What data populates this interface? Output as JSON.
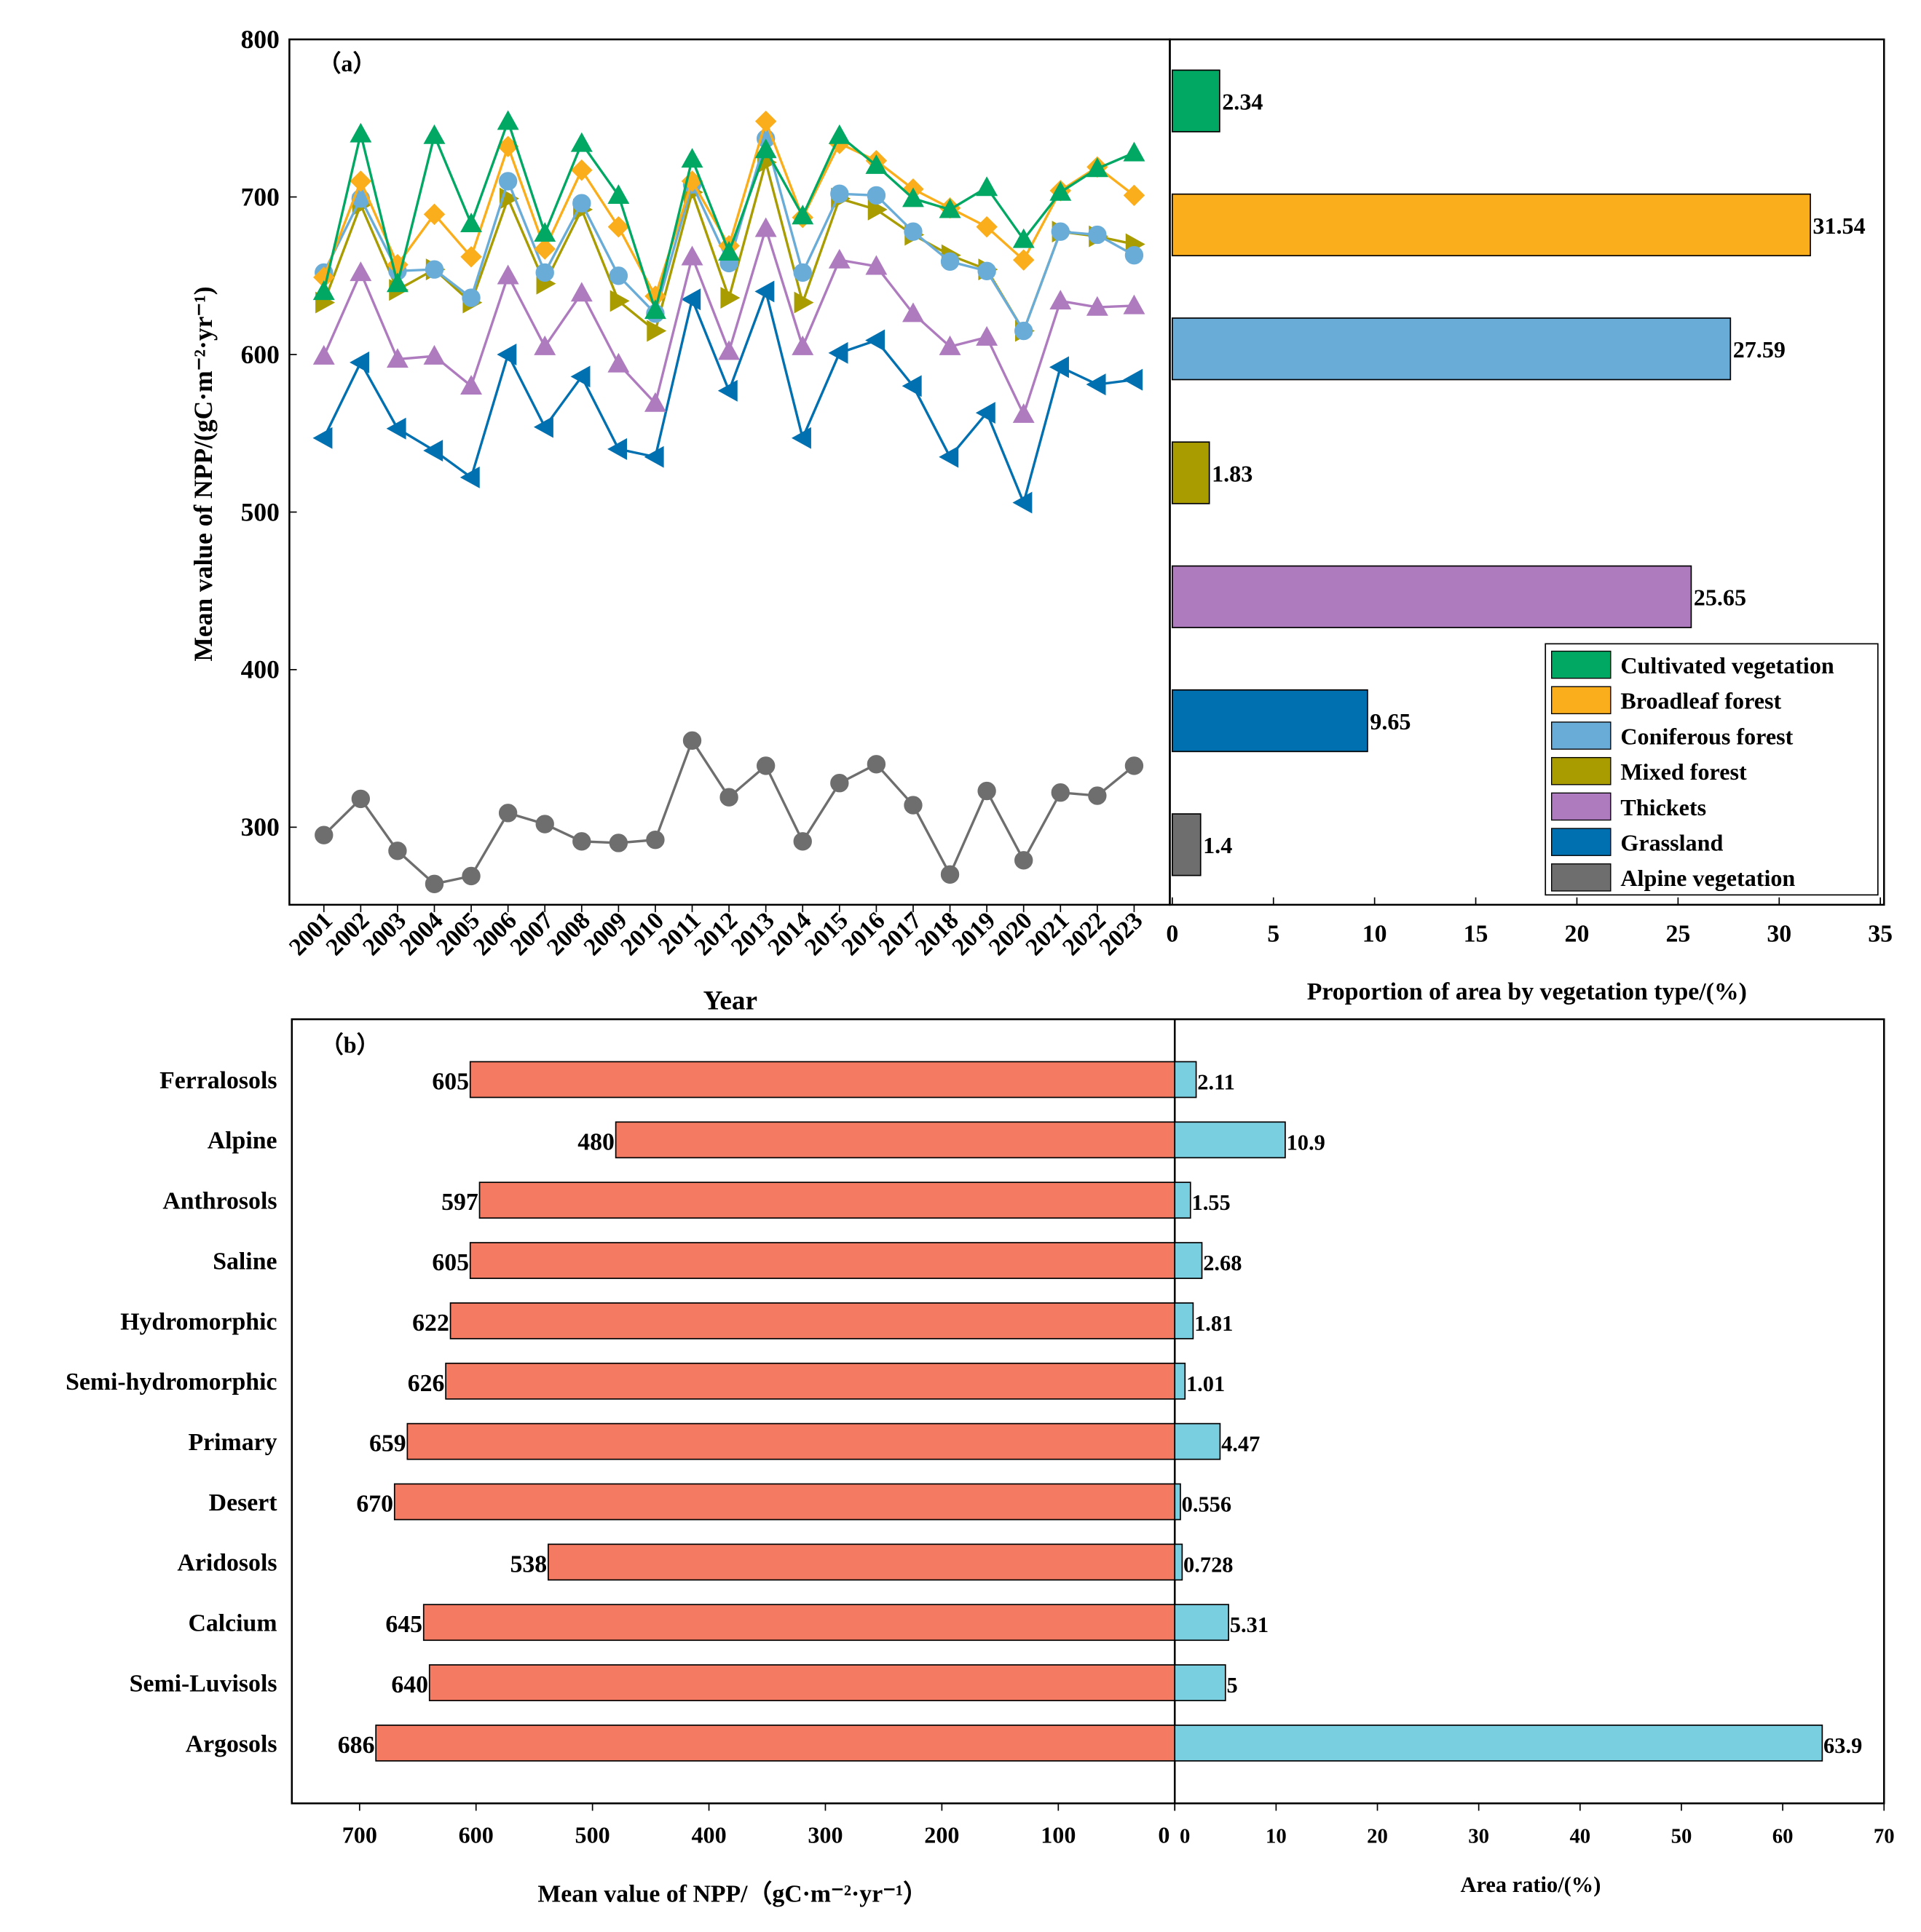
{
  "chart_data": [
    {
      "type": "line",
      "panel_label": "（a）",
      "xlabel": "Year",
      "ylabel": "Mean value of NPP/(gC·m⁻²·yr⁻¹)",
      "ylim": [
        250,
        800
      ],
      "yticks": [
        300,
        400,
        500,
        600,
        700,
        800
      ],
      "x": [
        2001,
        2002,
        2003,
        2004,
        2005,
        2006,
        2007,
        2008,
        2009,
        2010,
        2011,
        2012,
        2013,
        2014,
        2015,
        2016,
        2017,
        2018,
        2019,
        2020,
        2021,
        2022,
        2023
      ],
      "series": [
        {
          "name": "Cultivated vegetation",
          "color": "#00a864",
          "marker": "triangle-up",
          "values": [
            640,
            740,
            645,
            739,
            683,
            748,
            677,
            734,
            701,
            628,
            724,
            665,
            730,
            688,
            739,
            720,
            699,
            692,
            706,
            673,
            703,
            718,
            728
          ]
        },
        {
          "name": "Broadleaf forest",
          "color": "#fbae1c",
          "marker": "diamond",
          "values": [
            649,
            710,
            657,
            689,
            662,
            732,
            667,
            717,
            681,
            637,
            710,
            669,
            748,
            687,
            734,
            723,
            705,
            693,
            681,
            660,
            704,
            719,
            701
          ]
        },
        {
          "name": "Coniferous forest",
          "color": "#6aacd8",
          "marker": "circle",
          "values": [
            652,
            699,
            653,
            654,
            636,
            710,
            652,
            696,
            650,
            626,
            708,
            658,
            737,
            652,
            702,
            701,
            678,
            659,
            653,
            615,
            678,
            676,
            663
          ]
        },
        {
          "name": "Mixed forest",
          "color": "#a89c00",
          "marker": "triangle-right",
          "values": [
            633,
            695,
            641,
            654,
            633,
            699,
            645,
            692,
            634,
            615,
            703,
            636,
            722,
            633,
            699,
            692,
            676,
            663,
            654,
            615,
            678,
            675,
            670
          ]
        },
        {
          "name": "Thickets",
          "color": "#ae7bbf",
          "marker": "triangle-up",
          "values": [
            599,
            652,
            597,
            599,
            580,
            650,
            605,
            639,
            594,
            569,
            662,
            602,
            680,
            605,
            660,
            656,
            626,
            605,
            611,
            562,
            634,
            630,
            631
          ]
        },
        {
          "name": "Grassland",
          "color": "#0070b0",
          "marker": "triangle-left",
          "values": [
            547,
            595,
            553,
            539,
            522,
            600,
            554,
            586,
            540,
            535,
            635,
            577,
            640,
            547,
            601,
            609,
            580,
            535,
            563,
            506,
            592,
            581,
            584
          ]
        },
        {
          "name": "Alpine vegetation",
          "color": "#6e6e6e",
          "marker": "circle",
          "values": [
            295,
            318,
            285,
            264,
            269,
            309,
            302,
            291,
            290,
            292,
            355,
            319,
            339,
            291,
            328,
            340,
            314,
            270,
            323,
            279,
            322,
            320,
            339
          ]
        }
      ]
    },
    {
      "type": "bar",
      "orientation": "horizontal",
      "xlabel": "Proportion of area by vegetation type/(%)",
      "xlim": [
        0,
        35
      ],
      "xticks": [
        0,
        5,
        10,
        15,
        20,
        25,
        30,
        35
      ],
      "categories": [
        "Cultivated vegetation",
        "Broadleaf forest",
        "Coniferous forest",
        "Mixed forest",
        "Thickets",
        "Grassland",
        "Alpine vegetation"
      ],
      "values": [
        2.34,
        31.54,
        27.59,
        1.83,
        25.65,
        9.65,
        1.4
      ],
      "labels": [
        "2.34",
        "31.54",
        "27.59",
        "1.83",
        "25.65",
        "9.65",
        "1.4"
      ],
      "legend": "bottom-right"
    },
    {
      "type": "bar",
      "orientation": "horizontal",
      "panel_label": "（b）",
      "categories": [
        "Ferralosols",
        "Alpine",
        "Anthrosols",
        "Saline",
        "Hydromorphic",
        "Semi-hydromorphic",
        "Primary",
        "Desert",
        "Aridosols",
        "Calcium",
        "Semi-Luvisols",
        "Argosols"
      ],
      "npp": {
        "xlabel": "Mean value of NPP/（gC·m⁻²·yr⁻¹）",
        "xlim": [
          0,
          700
        ],
        "xticks": [
          700,
          600,
          500,
          400,
          300,
          200,
          100,
          0
        ],
        "color": "#f47b62",
        "values": [
          605,
          480,
          597,
          605,
          622,
          626,
          659,
          670,
          538,
          645,
          640,
          686
        ]
      },
      "area": {
        "xlabel": "Area ratio/(%)",
        "xlim": [
          0,
          70
        ],
        "xticks": [
          0,
          10,
          20,
          30,
          40,
          50,
          60,
          70
        ],
        "color": "#79cee0",
        "values": [
          2.11,
          10.9,
          1.55,
          2.68,
          1.81,
          1.01,
          4.47,
          0.556,
          0.728,
          5.31,
          5,
          63.9
        ],
        "labels": [
          "2.11",
          "10.9",
          "1.55",
          "2.68",
          "1.81",
          "1.01",
          "4.47",
          "0.556",
          "0.728",
          "5.31",
          "5",
          "63.9"
        ]
      }
    }
  ]
}
